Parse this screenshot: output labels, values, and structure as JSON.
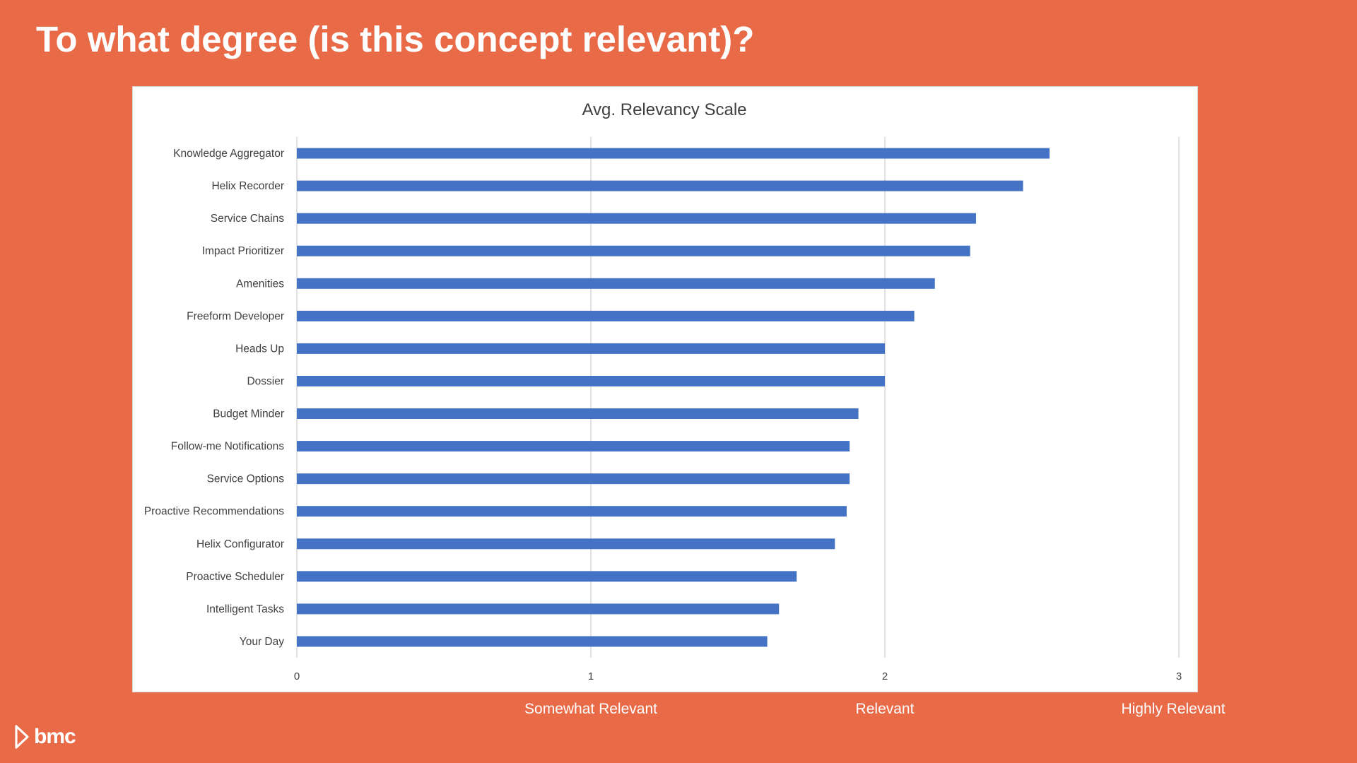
{
  "slide": {
    "title": "To what degree (is this concept relevant)?",
    "scale_labels": [
      "Somewhat Relevant",
      "Relevant",
      "Highly Relevant"
    ],
    "logo_text": "bmc",
    "logo_icon": "bmc-chevron-logo-icon"
  },
  "colors": {
    "background": "#E96A47",
    "bar": "#4472C4",
    "grid": "#D9D9D9",
    "text": "#404040"
  },
  "chart_data": {
    "type": "bar",
    "orientation": "horizontal",
    "title": "Avg. Relevancy Scale",
    "xlabel": "",
    "ylabel": "",
    "xlim": [
      0,
      3
    ],
    "x_ticks": [
      0,
      1,
      2,
      3
    ],
    "grid": true,
    "legend": "none",
    "categories": [
      "Knowledge Aggregator",
      "Helix Recorder",
      "Service Chains",
      "Impact Prioritizer",
      "Amenities",
      "Freeform Developer",
      "Heads Up",
      "Dossier",
      "Budget Minder",
      "Follow-me Notifications",
      "Service Options",
      "Proactive Recommendations",
      "Helix Configurator",
      "Proactive Scheduler",
      "Intelligent Tasks",
      "Your Day"
    ],
    "values": [
      2.56,
      2.47,
      2.31,
      2.29,
      2.17,
      2.1,
      2.0,
      2.0,
      1.91,
      1.88,
      1.88,
      1.87,
      1.83,
      1.7,
      1.64,
      1.6
    ]
  }
}
